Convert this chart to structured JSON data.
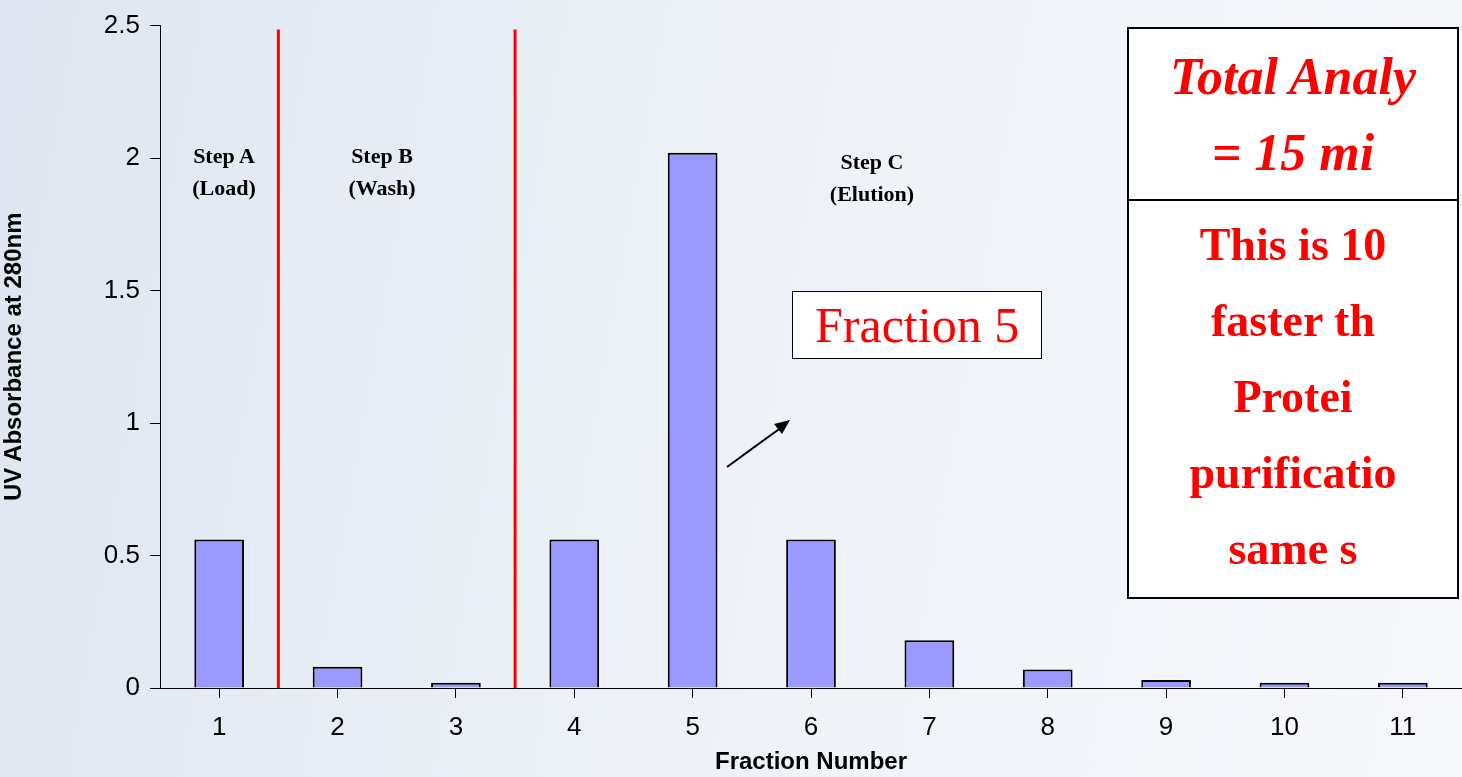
{
  "chart_data": {
    "type": "bar",
    "xlabel": "Fraction Number",
    "ylabel": "UV Absorbance at 280nm",
    "x": [
      1,
      2,
      3,
      4,
      5,
      6,
      7,
      8,
      9,
      10,
      11
    ],
    "values": [
      0.56,
      0.08,
      0.02,
      0.56,
      2.02,
      0.56,
      0.18,
      0.07,
      0.03,
      0.02,
      0.02
    ],
    "color": "#9999ff",
    "xlim": [
      0.5,
      11.5
    ],
    "xticks": [
      1,
      2,
      3,
      4,
      5,
      6,
      7,
      8,
      9,
      10,
      11
    ],
    "ylim": [
      0,
      2.5
    ],
    "yticks": [
      0,
      0.5,
      1,
      1.5,
      2,
      2.5
    ],
    "grid": false,
    "legend": false,
    "ref_lines": [
      {
        "axis": "x",
        "value": 1.5,
        "color": "#ff0000"
      },
      {
        "axis": "x",
        "value": 3.5,
        "color": "#ff0000"
      }
    ],
    "annotations": [
      "Step A\n(Load)",
      "Step B\n(Wash)",
      "Step C\n(Elution)",
      "Fraction 5",
      "Total Analy\n= 15 mi",
      "This is 10\nfaster th\nProtei\npurificatio\nsame s"
    ]
  }
}
